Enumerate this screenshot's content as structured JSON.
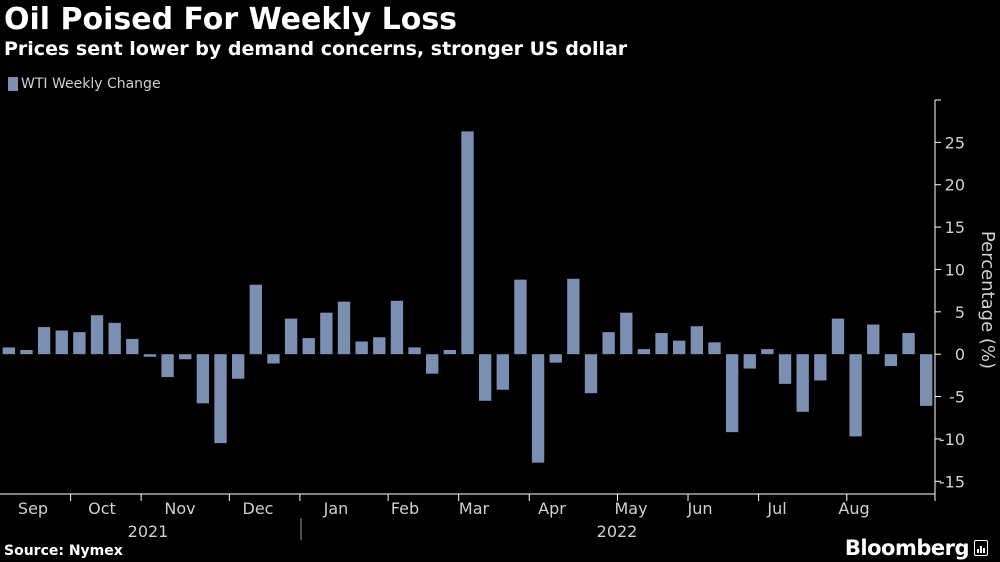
{
  "title": "Oil Poised For Weekly Loss",
  "subtitle": "Prices sent lower by demand concerns, stronger US dollar",
  "legend": {
    "label": "WTI Weekly Change",
    "color": "#7b8fb2"
  },
  "source": "Source: Nymex",
  "brand": "Bloomberg",
  "brand_icon": "bloomberg-terminal-icon",
  "colors": {
    "background": "#000000",
    "bar": "#7b8fb2",
    "axis": "#ffffff",
    "tick_text": "#d0d0d0"
  },
  "chart_data": {
    "type": "bar",
    "title": "Oil Poised For Weekly Loss",
    "subtitle": "Prices sent lower by demand concerns, stronger US dollar",
    "ylabel": "Percentage (%)",
    "y_axis_position": "right",
    "ylim": [
      -16.5,
      30
    ],
    "yticks": [
      -15,
      -10,
      -5,
      0,
      5,
      10,
      15,
      20,
      25
    ],
    "grid": false,
    "legend_position": "top-left",
    "x_month_labels": [
      "Sep",
      "Oct",
      "Nov",
      "Dec",
      "Jan",
      "Feb",
      "Mar",
      "Apr",
      "May",
      "Jun",
      "Jul",
      "Aug"
    ],
    "x_year_labels": [
      "2021",
      "2022"
    ],
    "series": [
      {
        "name": "WTI Weekly Change",
        "values": [
          0.8,
          0.5,
          3.2,
          2.8,
          2.6,
          4.6,
          3.7,
          1.8,
          -0.3,
          -2.7,
          -0.6,
          -5.8,
          -10.5,
          -2.9,
          8.2,
          -1.1,
          4.2,
          1.9,
          4.9,
          6.2,
          1.5,
          2.0,
          6.3,
          0.8,
          -2.3,
          0.5,
          26.3,
          -5.5,
          -4.2,
          8.8,
          -12.8,
          -1.0,
          8.9,
          -4.6,
          2.6,
          4.9,
          0.6,
          2.5,
          1.6,
          3.3,
          1.4,
          -9.2,
          -1.7,
          0.6,
          -3.5,
          -6.8,
          -3.1,
          4.2,
          -9.7,
          3.5,
          -1.4,
          2.5,
          -6.1
        ]
      }
    ]
  }
}
